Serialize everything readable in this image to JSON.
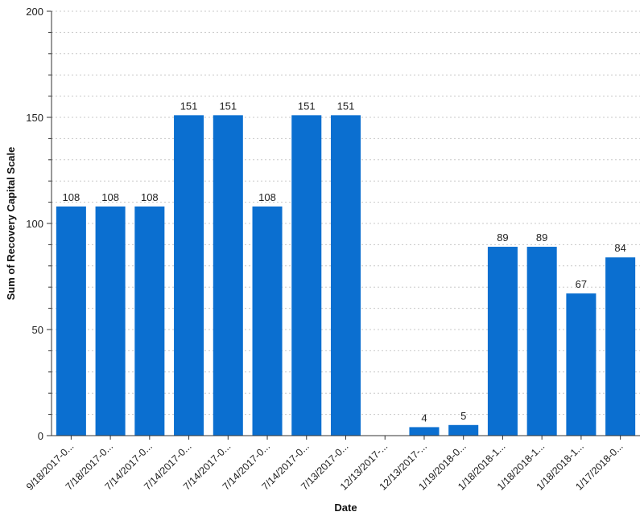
{
  "chart_data": {
    "type": "bar",
    "xlabel": "Date",
    "ylabel": "Sum of Recovery Capital Scale",
    "ylim": [
      0,
      200
    ],
    "yticks": [
      0,
      50,
      100,
      150,
      200
    ],
    "grid": "horizontal dotted",
    "bar_color": "#0b6fd0",
    "categories": [
      "9/18/2017-0...",
      "7/18/2017-0...",
      "7/14/2017-0...",
      "7/14/2017-0...",
      "7/14/2017-0...",
      "7/14/2017-0...",
      "7/14/2017-0...",
      "7/13/2017-0...",
      "12/13/2017-...",
      "12/13/2017-...",
      "1/19/2018-0...",
      "1/18/2018-1...",
      "1/18/2018-1...",
      "1/18/2018-1...",
      "1/17/2018-0..."
    ],
    "values": [
      108,
      108,
      108,
      151,
      151,
      108,
      151,
      151,
      null,
      4,
      5,
      89,
      89,
      67,
      84
    ],
    "data_labels": [
      "108",
      "108",
      "108",
      "151",
      "151",
      "108",
      "151",
      "151",
      "",
      "4",
      "5",
      "89",
      "89",
      "67",
      "84"
    ]
  }
}
